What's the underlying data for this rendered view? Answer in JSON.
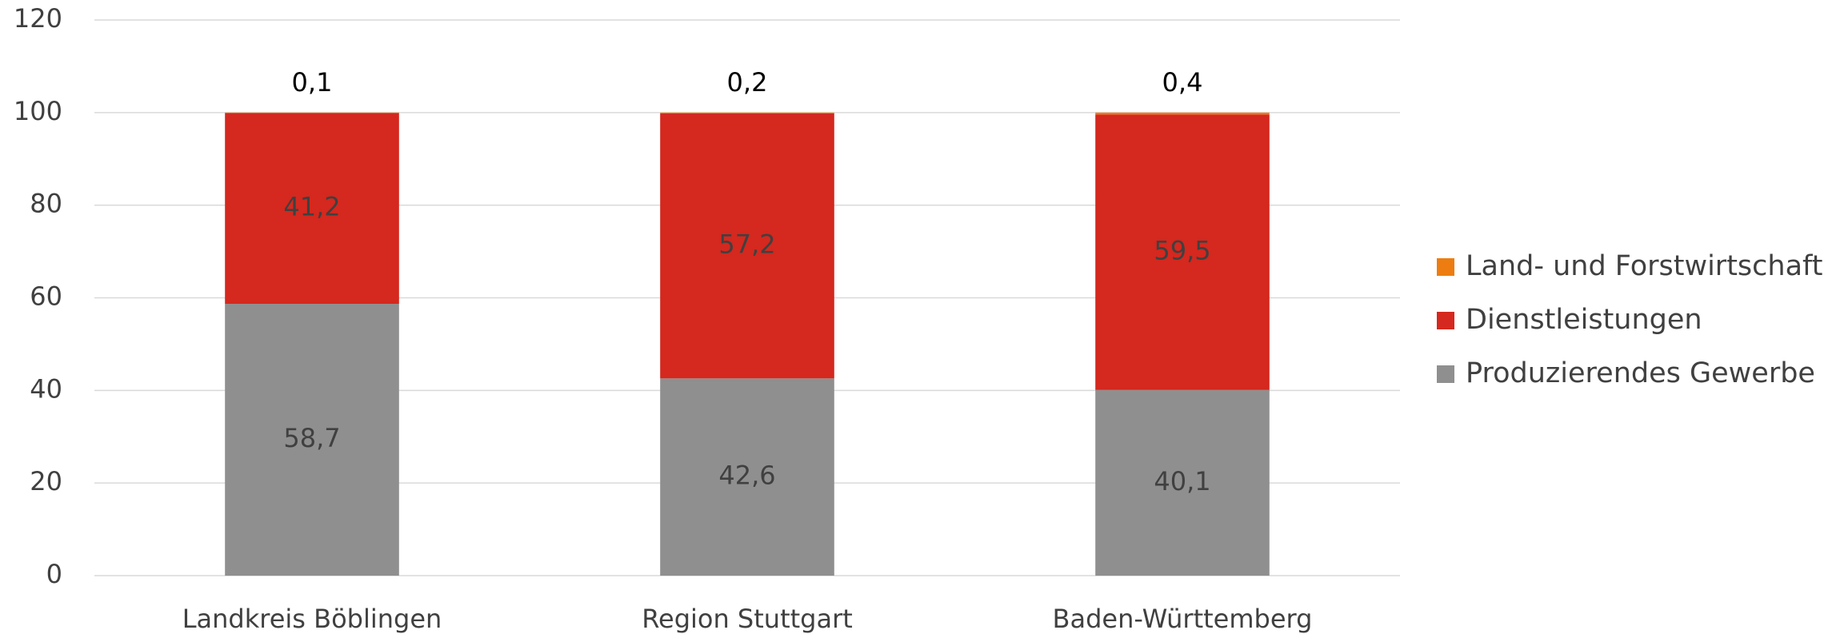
{
  "chart_data": {
    "type": "stacked_bar",
    "categories": [
      "Landkreis Böblingen",
      "Region Stuttgart",
      "Baden-Württemberg"
    ],
    "series": [
      {
        "name": "Produzierendes Gewerbe",
        "color": "#8f8f8f",
        "values": [
          58.7,
          42.6,
          40.1
        ],
        "value_labels": [
          "58,7",
          "42,6",
          "40,1"
        ]
      },
      {
        "name": "Dienstleistungen",
        "color": "#d5281e",
        "values": [
          41.2,
          57.2,
          59.5
        ],
        "value_labels": [
          "41,2",
          "57,2",
          "59,5"
        ]
      },
      {
        "name": "Land- und Forstwirtschaft",
        "color": "#ed7d10",
        "values": [
          0.1,
          0.2,
          0.4
        ],
        "value_labels": [
          "0,1",
          "0,2",
          "0,4"
        ]
      }
    ],
    "ylim": [
      0,
      120
    ],
    "yticks": [
      0,
      20,
      40,
      60,
      80,
      100,
      120
    ],
    "grid": true,
    "legend": "right"
  }
}
